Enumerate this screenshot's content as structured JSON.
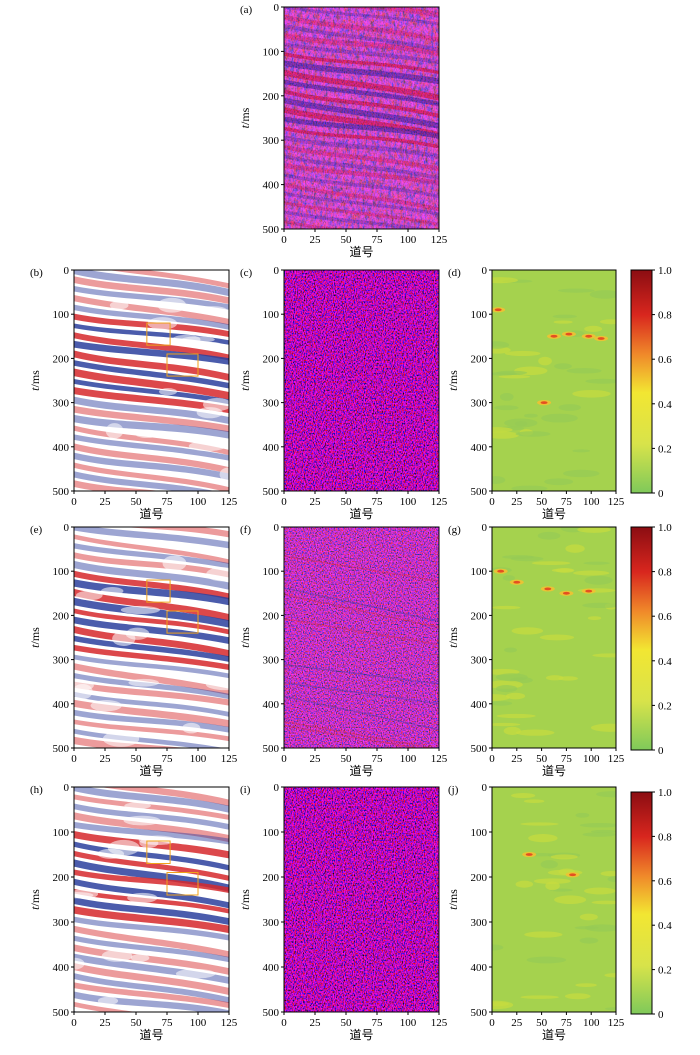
{
  "figure": {
    "axes_common": {
      "y_label_italic": "t",
      "y_label_rest": "/ms",
      "x_label": "道号",
      "y_ticks": [
        "0",
        "100",
        "200",
        "300",
        "400",
        "500"
      ],
      "x_ticks": [
        "0",
        "25",
        "50",
        "75",
        "100",
        "125"
      ]
    },
    "colorbar_ticks": [
      "0",
      "0.2",
      "0.4",
      "0.6",
      "0.8",
      "1.0"
    ],
    "colors": {
      "seismic_red": "#d6282b",
      "seismic_blue": "#2c3f9e",
      "seismic_white": "#ffffff",
      "heat_low": "#7fc95a",
      "heat_mid": "#f2e632",
      "heat_high": "#8b0d12",
      "box_orange": "#f0a21a"
    },
    "panels": [
      {
        "label": "(a)",
        "kind": "seismic-noisy"
      },
      {
        "label": "(b)",
        "kind": "seismic-smooth",
        "boxes": true
      },
      {
        "label": "(c)",
        "kind": "seismic-noise"
      },
      {
        "label": "(d)",
        "kind": "heatmap",
        "colorbar": true
      },
      {
        "label": "(e)",
        "kind": "seismic-smooth",
        "boxes": true
      },
      {
        "label": "(f)",
        "kind": "seismic-noise-faint"
      },
      {
        "label": "(g)",
        "kind": "heatmap",
        "colorbar": true
      },
      {
        "label": "(h)",
        "kind": "seismic-smooth",
        "boxes": true
      },
      {
        "label": "(i)",
        "kind": "seismic-noise"
      },
      {
        "label": "(j)",
        "kind": "heatmap",
        "colorbar": true
      }
    ]
  }
}
